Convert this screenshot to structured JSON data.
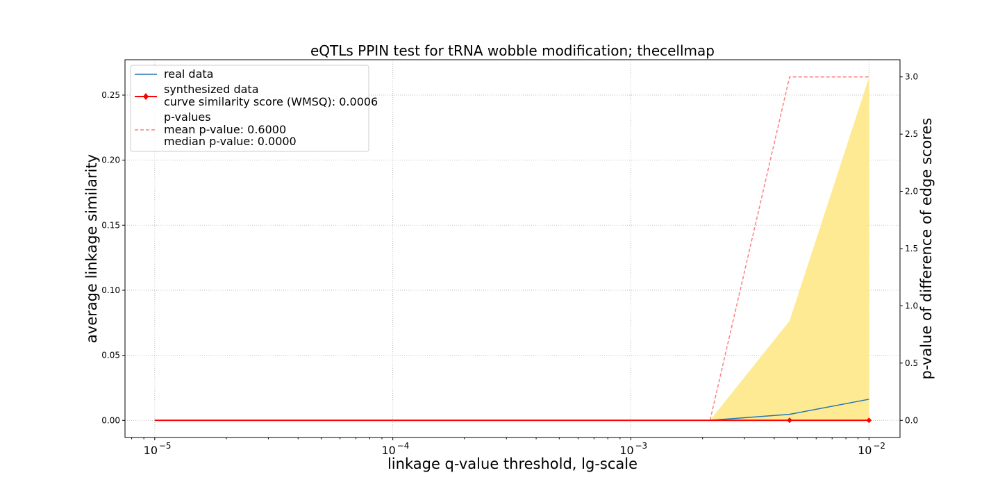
{
  "chart_data": {
    "type": "line",
    "title": "eQTLs PPIN test for tRNA wobble modification; thecellmap",
    "xlabel": "linkage q-value threshold, lg-scale",
    "ylabel": "average linkage similarity",
    "y2label": "p-value of difference of edge scores",
    "xscale": "log",
    "xlim": [
      7.5e-06,
      0.0135
    ],
    "ylim": [
      -0.0132,
      0.2772
    ],
    "y2lim": [
      -0.15,
      3.15
    ],
    "x_ticks": [
      1e-05,
      0.0001,
      0.001,
      0.01
    ],
    "x_tick_labels": [
      {
        "base": "10",
        "exp": "−5"
      },
      {
        "base": "10",
        "exp": "−4"
      },
      {
        "base": "10",
        "exp": "−3"
      },
      {
        "base": "10",
        "exp": "−2"
      }
    ],
    "y_ticks": [
      "0.00",
      "0.05",
      "0.10",
      "0.15",
      "0.20",
      "0.25"
    ],
    "y2_ticks": [
      "0.0",
      "0.5",
      "1.0",
      "1.5",
      "2.0",
      "2.5",
      "3.0"
    ],
    "grid": true,
    "legend_position": "upper-left",
    "x": [
      1e-05,
      2.15e-05,
      4.64e-05,
      0.0001,
      0.000215,
      0.000464,
      0.001,
      0.00215,
      0.00464,
      0.01
    ],
    "series": [
      {
        "name": "real data",
        "axis": "left",
        "color": "#1f77b4",
        "values": [
          0,
          0,
          0,
          0,
          0,
          0,
          0,
          0,
          0.0046,
          0.0162
        ]
      },
      {
        "name": "synthesized data",
        "axis": "left",
        "color": "#ff0000",
        "marker": "diamond",
        "values": [
          0,
          0,
          0,
          0,
          0,
          0,
          0,
          0,
          0,
          0
        ]
      },
      {
        "name": "p-values",
        "axis": "right",
        "color": "#ff7f7f",
        "style": "dashed",
        "values": [
          0,
          0,
          0,
          0,
          0,
          0,
          0,
          0,
          3.0,
          3.0
        ]
      }
    ],
    "band": {
      "color": "#fde98c",
      "lower": [
        0,
        0,
        0,
        0,
        0,
        0,
        0,
        0,
        0,
        0
      ],
      "upper": [
        0,
        0,
        0,
        0,
        0,
        0,
        0,
        0,
        0.0765,
        0.2635
      ]
    },
    "legend": [
      {
        "label": "real data",
        "series": "real data"
      },
      {
        "label": "synthesized data",
        "series": "synthesized data",
        "extra": "curve similarity score (WMSQ): 0.0006"
      },
      {
        "label": "p-values",
        "series": "p-values",
        "extra": "mean p-value: 0.6000",
        "extra2": "median p-value: 0.0000"
      }
    ]
  }
}
